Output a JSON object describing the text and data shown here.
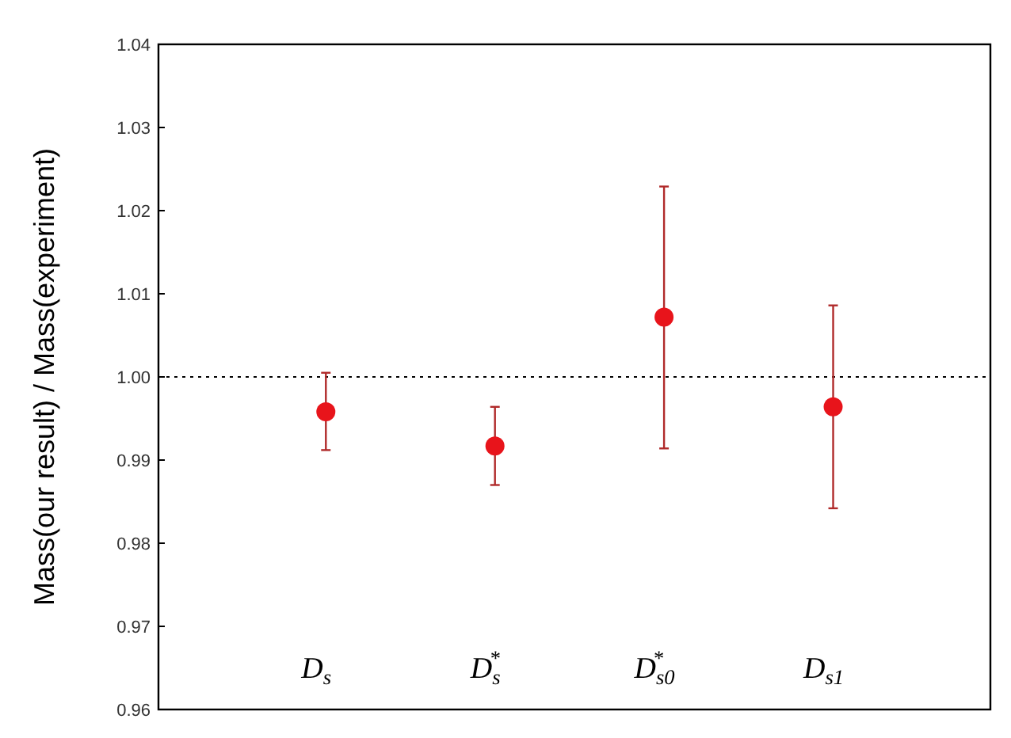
{
  "chart_data": {
    "type": "scatter",
    "ylabel": "Mass(our result) / Mass(experiment)",
    "categories": [
      "D$_{s}$",
      "D$_{s}$$^{*}$",
      "D$_{s0}$$^{*}$",
      "D$_{s1}$"
    ],
    "series": [
      {
        "color": "#e8141b",
        "values": [
          0.9958,
          0.9917,
          1.0072,
          0.9964
        ],
        "errors": [
          [
            0.9912,
            1.0005
          ],
          [
            0.987,
            0.9964
          ],
          [
            0.9914,
            1.0229
          ],
          [
            0.9842,
            1.0086
          ]
        ]
      }
    ],
    "ylim": [
      0.96,
      1.04
    ],
    "yticks": [
      {
        "value": 0.96,
        "label": "0.96"
      },
      {
        "value": 0.97,
        "label": "0.97"
      },
      {
        "value": 0.98,
        "label": "0.98"
      },
      {
        "value": 0.99,
        "label": "0.99"
      },
      {
        "value": 1,
        "label": "1.00"
      },
      {
        "value": 1.01,
        "label": "1.01"
      },
      {
        "value": 1.02,
        "label": "1.02"
      },
      {
        "value": 1.03,
        "label": "1.03"
      },
      {
        "value": 1.04,
        "label": "1.04"
      }
    ],
    "ref_lines": [
      {
        "axis": "y",
        "value": 1,
        "line_style": "dotted",
        "color": "#000000"
      }
    ],
    "marker": "circle"
  }
}
